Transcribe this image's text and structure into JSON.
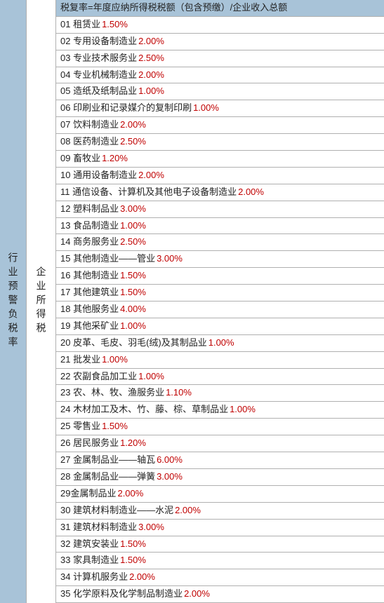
{
  "left_header": "行业预警负税率",
  "mid_header": "企业所得税",
  "formula_header": "税复率=年度应纳所得税税额（包含预缴）/企业收入总额",
  "rows": [
    {
      "text": "01 租赁业",
      "rate": "1.50%"
    },
    {
      "text": "02 专用设备制造业",
      "rate": "2.00%"
    },
    {
      "text": "03 专业技术服务业",
      "rate": "2.50%"
    },
    {
      "text": "04 专业机械制造业",
      "rate": "2.00%"
    },
    {
      "text": "05 造纸及纸制品业",
      "rate": "1.00%"
    },
    {
      "text": "06 印刷业和记录媒介的复制印刷",
      "rate": "1.00%"
    },
    {
      "text": "07 饮料制造业",
      "rate": "2.00%"
    },
    {
      "text": "08 医药制造业",
      "rate": "2.50%"
    },
    {
      "text": "09 畜牧业",
      "rate": "1.20%"
    },
    {
      "text": "10 通用设备制造业",
      "rate": "2.00%"
    },
    {
      "text": "11 通信设备、计算机及其他电子设备制造业",
      "rate": "2.00%"
    },
    {
      "text": "12 塑料制品业",
      "rate": "3.00%"
    },
    {
      "text": "13 食品制造业",
      "rate": "1.00%"
    },
    {
      "text": "14 商务服务业",
      "rate": "2.50%"
    },
    {
      "text": "15 其他制造业——管业",
      "rate": "3.00%"
    },
    {
      "text": "16 其他制造业",
      "rate": "1.50%"
    },
    {
      "text": "17 其他建筑业",
      "rate": "1.50%"
    },
    {
      "text": "18 其他服务业",
      "rate": "4.00%"
    },
    {
      "text": "19 其他采矿业",
      "rate": "1.00%"
    },
    {
      "text": "20 皮革、毛皮、羽毛(绒)及其制品业",
      "rate": "1.00%"
    },
    {
      "text": "21 批发业",
      "rate": "1.00%"
    },
    {
      "text": "22 农副食品加工业",
      "rate": "1.00%"
    },
    {
      "text": "23 农、林、牧、渔服务业",
      "rate": "1.10%"
    },
    {
      "text": "24 木材加工及木、竹、藤、棕、草制品业",
      "rate": "1.00%"
    },
    {
      "text": "25 零售业",
      "rate": "1.50%"
    },
    {
      "text": "26 居民服务业",
      "rate": "1.20%"
    },
    {
      "text": "27 金属制品业——轴瓦",
      "rate": "6.00%"
    },
    {
      "text": "28 金属制品业——弹簧",
      "rate": "3.00%"
    },
    {
      "text": "29金属制品业",
      "rate": "2.00%"
    },
    {
      "text": "30 建筑材料制造业——水泥",
      "rate": "2.00%"
    },
    {
      "text": "31 建筑材料制造业",
      "rate": "3.00%"
    },
    {
      "text": "32 建筑安装业",
      "rate": "1.50%"
    },
    {
      "text": "33 家具制造业",
      "rate": "1.50%"
    },
    {
      "text": "34 计算机服务业",
      "rate": "2.00%"
    },
    {
      "text": "35 化学原料及化学制品制造业",
      "rate": "2.00%"
    }
  ],
  "colors": {
    "header_bg": "#a8c3d8",
    "rate_color": "#c00000",
    "text_color": "#222222",
    "border_color": "#b0b0b0"
  }
}
